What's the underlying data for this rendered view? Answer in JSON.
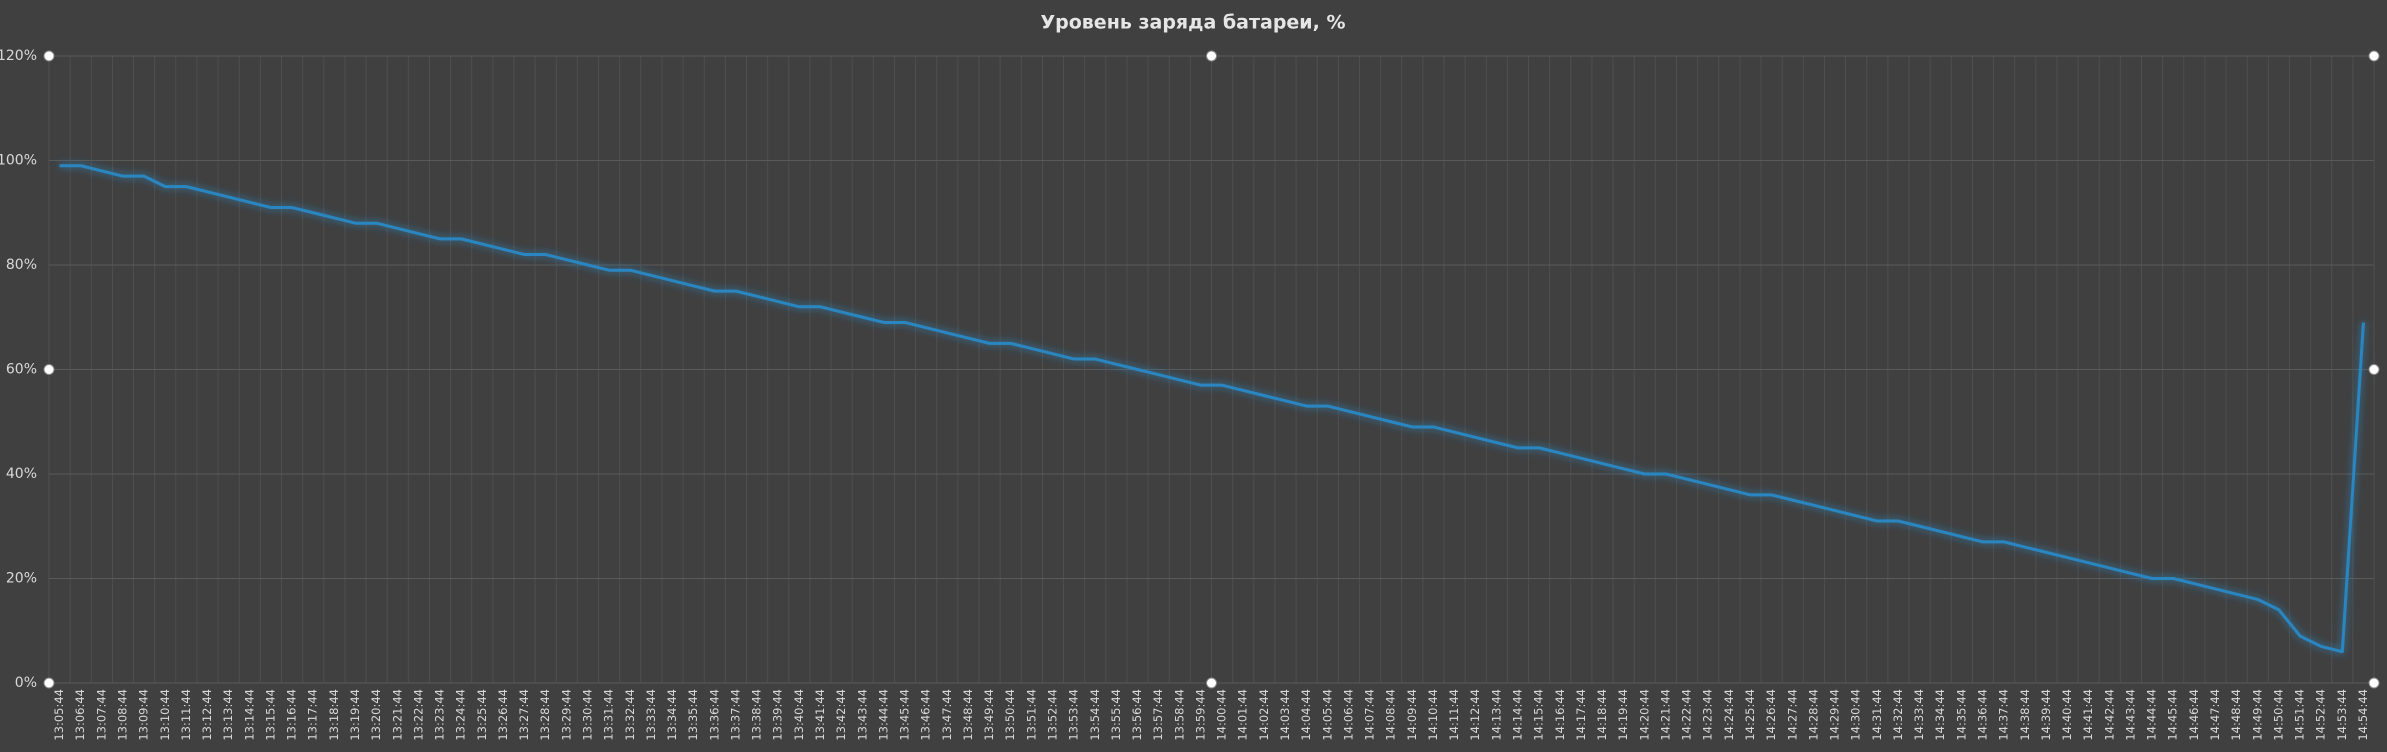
{
  "chart_data": {
    "type": "line",
    "title": "Уровень заряда батареи, %",
    "categories": [
      "13:05:44",
      "13:06:44",
      "13:07:44",
      "13:08:44",
      "13:09:44",
      "13:10:44",
      "13:11:44",
      "13:12:44",
      "13:13:44",
      "13:14:44",
      "13:15:44",
      "13:16:44",
      "13:17:44",
      "13:18:44",
      "13:19:44",
      "13:20:44",
      "13:21:44",
      "13:22:44",
      "13:23:44",
      "13:24:44",
      "13:25:44",
      "13:26:44",
      "13:27:44",
      "13:28:44",
      "13:29:44",
      "13:30:44",
      "13:31:44",
      "13:32:44",
      "13:33:44",
      "13:34:44",
      "13:35:44",
      "13:36:44",
      "13:37:44",
      "13:38:44",
      "13:39:44",
      "13:40:44",
      "13:41:44",
      "13:42:44",
      "13:43:44",
      "13:44:44",
      "13:45:44",
      "13:46:44",
      "13:47:44",
      "13:48:44",
      "13:49:44",
      "13:50:44",
      "13:51:44",
      "13:52:44",
      "13:53:44",
      "13:54:44",
      "13:55:44",
      "13:56:44",
      "13:57:44",
      "13:58:44",
      "13:59:44",
      "14:00:44",
      "14:01:44",
      "14:02:44",
      "14:03:44",
      "14:04:44",
      "14:05:44",
      "14:06:44",
      "14:07:44",
      "14:08:44",
      "14:09:44",
      "14:10:44",
      "14:11:44",
      "14:12:44",
      "14:13:44",
      "14:14:44",
      "14:15:44",
      "14:16:44",
      "14:17:44",
      "14:18:44",
      "14:19:44",
      "14:20:44",
      "14:21:44",
      "14:22:44",
      "14:23:44",
      "14:24:44",
      "14:25:44",
      "14:26:44",
      "14:27:44",
      "14:28:44",
      "14:29:44",
      "14:30:44",
      "14:31:44",
      "14:32:44",
      "14:33:44",
      "14:34:44",
      "14:35:44",
      "14:36:44",
      "14:37:44",
      "14:38:44",
      "14:39:44",
      "14:40:44",
      "14:41:44",
      "14:42:44",
      "14:43:44",
      "14:44:44",
      "14:45:44",
      "14:46:44",
      "14:47:44",
      "14:48:44",
      "14:49:44",
      "14:50:44",
      "14:51:44",
      "14:52:44",
      "14:53:44",
      "14:54:44"
    ],
    "values": [
      99,
      99,
      98,
      97,
      97,
      95,
      95,
      94,
      93,
      92,
      91,
      91,
      90,
      89,
      88,
      88,
      87,
      86,
      85,
      85,
      84,
      83,
      82,
      82,
      81,
      80,
      79,
      79,
      78,
      77,
      76,
      75,
      75,
      74,
      73,
      72,
      72,
      71,
      70,
      69,
      69,
      68,
      67,
      66,
      65,
      65,
      64,
      63,
      62,
      62,
      61,
      60,
      59,
      58,
      57,
      57,
      56,
      55,
      54,
      53,
      53,
      52,
      51,
      50,
      49,
      49,
      48,
      47,
      46,
      45,
      45,
      44,
      43,
      42,
      41,
      40,
      40,
      39,
      38,
      37,
      36,
      36,
      35,
      34,
      33,
      32,
      31,
      31,
      30,
      29,
      28,
      27,
      27,
      26,
      25,
      24,
      23,
      22,
      21,
      20,
      20,
      19,
      18,
      17,
      16,
      14,
      9,
      7,
      6,
      69
    ],
    "color": "#2b86c0",
    "ylim": [
      0,
      120
    ],
    "yticks": [
      {
        "value": 0,
        "label": "0%"
      },
      {
        "value": 20,
        "label": "20%"
      },
      {
        "value": 40,
        "label": "40%"
      },
      {
        "value": 60,
        "label": "60%"
      },
      {
        "value": 80,
        "label": "80%"
      },
      {
        "value": 100,
        "label": "100%"
      },
      {
        "value": 120,
        "label": "120%"
      }
    ],
    "grid": true
  }
}
